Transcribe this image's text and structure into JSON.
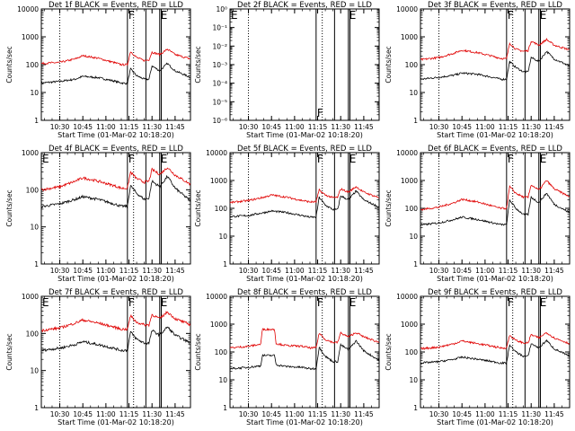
{
  "figure": {
    "xlabel": "Start Time (01-Mar-02 10:18:20)",
    "ylabel": "Counts/sec",
    "x_tick_labels": [
      "10:30",
      "10:45",
      "11:00",
      "11:15",
      "11:30",
      "11:45"
    ],
    "colors": {
      "events": "#000000",
      "lld": "#e00000",
      "axes": "#000000"
    }
  },
  "chart_data": [
    {
      "type": "line",
      "title": "Det 1f BLACK = Events, RED = LLD",
      "xlabel": "Start Time (01-Mar-02 10:18:20)",
      "ylabel": "Counts/sec",
      "xlim": [
        "10:18",
        "11:55"
      ],
      "ylim": [
        1,
        10000
      ],
      "yscale": "log",
      "y_tick_labels": [
        "1",
        "10",
        "100",
        "1000",
        "10000"
      ],
      "dotted_lines": [
        "10:30",
        "11:18"
      ],
      "solid_lines": [
        "11:14",
        "11:26",
        "11:35",
        "11:36"
      ],
      "markers": [
        {
          "text": "F",
          "x": "11:14"
        },
        {
          "text": "E",
          "x": "11:35"
        }
      ],
      "series": [
        {
          "name": "Events",
          "x": [
            "10:18",
            "10:30",
            "10:40",
            "10:45",
            "10:55",
            "11:05",
            "11:10",
            "11:14",
            "11:16",
            "11:20",
            "11:25",
            "11:28",
            "11:30",
            "11:35",
            "11:40",
            "11:45",
            "11:55"
          ],
          "values": [
            22,
            25,
            30,
            38,
            34,
            26,
            22,
            21,
            70,
            40,
            30,
            30,
            90,
            60,
            110,
            60,
            35
          ]
        },
        {
          "name": "LLD",
          "x": [
            "10:18",
            "10:30",
            "10:40",
            "10:45",
            "10:55",
            "11:05",
            "11:10",
            "11:14",
            "11:16",
            "11:20",
            "11:25",
            "11:28",
            "11:30",
            "11:35",
            "11:40",
            "11:45",
            "11:55"
          ],
          "values": [
            110,
            120,
            160,
            210,
            170,
            120,
            100,
            100,
            300,
            180,
            140,
            150,
            280,
            230,
            360,
            230,
            160
          ]
        }
      ]
    },
    {
      "type": "line",
      "title": "Det 2f BLACK = Events, RED = LLD",
      "xlabel": "Start Time (01-Mar-02 10:18:20)",
      "ylabel": "Counts/sec",
      "xlim": [
        "10:18",
        "11:55"
      ],
      "ylim": [
        1e-06,
        1
      ],
      "yscale": "log",
      "y_tick_labels": [
        "10⁻⁶",
        "10⁻⁵",
        "10⁻⁴",
        "10⁻³",
        "10⁻²",
        "10⁻¹",
        "10⁰"
      ],
      "dotted_lines": [
        "10:30",
        "11:18"
      ],
      "solid_lines": [
        "11:14",
        "11:26",
        "11:35",
        "11:36"
      ],
      "markers": [
        {
          "text": "E",
          "x": "10:18"
        },
        {
          "text": "F",
          "x": "11:14"
        },
        {
          "text": "E",
          "x": "11:35"
        }
      ],
      "series": []
    },
    {
      "type": "line",
      "title": "Det 3f BLACK = Events, RED = LLD",
      "xlabel": "Start Time (01-Mar-02 10:18:20)",
      "ylabel": "Counts/sec",
      "xlim": [
        "10:18",
        "11:55"
      ],
      "ylim": [
        1,
        10000
      ],
      "yscale": "log",
      "y_tick_labels": [
        "1",
        "10",
        "100",
        "1000",
        "10000"
      ],
      "dotted_lines": [
        "10:30",
        "11:18"
      ],
      "solid_lines": [
        "11:14",
        "11:26",
        "11:35",
        "11:36"
      ],
      "markers": [
        {
          "text": "F",
          "x": "11:14"
        },
        {
          "text": "E",
          "x": "11:35"
        }
      ],
      "series": [
        {
          "name": "Events",
          "x": [
            "10:18",
            "10:30",
            "10:40",
            "10:45",
            "10:55",
            "11:05",
            "11:10",
            "11:14",
            "11:16",
            "11:20",
            "11:25",
            "11:28",
            "11:30",
            "11:35",
            "11:40",
            "11:45",
            "11:55"
          ],
          "values": [
            30,
            35,
            42,
            50,
            45,
            35,
            30,
            30,
            130,
            80,
            55,
            55,
            180,
            130,
            300,
            160,
            90
          ]
        },
        {
          "name": "LLD",
          "x": [
            "10:18",
            "10:30",
            "10:40",
            "10:45",
            "10:55",
            "11:05",
            "11:10",
            "11:14",
            "11:16",
            "11:20",
            "11:25",
            "11:28",
            "11:30",
            "11:35",
            "11:40",
            "11:45",
            "11:55"
          ],
          "values": [
            150,
            180,
            260,
            330,
            270,
            200,
            170,
            160,
            600,
            360,
            300,
            320,
            700,
            500,
            800,
            500,
            340
          ]
        }
      ]
    },
    {
      "type": "line",
      "title": "Det 4f BLACK = Events, RED = LLD",
      "xlabel": "Start Time (01-Mar-02 10:18:20)",
      "ylabel": "Counts/sec",
      "xlim": [
        "10:18",
        "11:55"
      ],
      "ylim": [
        1,
        1000
      ],
      "yscale": "log",
      "y_tick_labels": [
        "1",
        "10",
        "100",
        "1000"
      ],
      "dotted_lines": [
        "10:30",
        "11:18"
      ],
      "solid_lines": [
        "11:14",
        "11:26",
        "11:35",
        "11:36"
      ],
      "markers": [
        {
          "text": "E",
          "x": "10:18"
        },
        {
          "text": "F",
          "x": "11:14"
        },
        {
          "text": "E",
          "x": "11:35"
        }
      ],
      "series": [
        {
          "name": "Events",
          "x": [
            "10:18",
            "10:30",
            "10:40",
            "10:45",
            "10:55",
            "11:05",
            "11:10",
            "11:14",
            "11:16",
            "11:20",
            "11:25",
            "11:28",
            "11:30",
            "11:35",
            "11:40",
            "11:45",
            "11:55"
          ],
          "values": [
            35,
            42,
            55,
            65,
            55,
            42,
            36,
            36,
            130,
            80,
            55,
            60,
            170,
            120,
            230,
            110,
            50
          ]
        },
        {
          "name": "LLD",
          "x": [
            "10:18",
            "10:30",
            "10:40",
            "10:45",
            "10:55",
            "11:05",
            "11:10",
            "11:14",
            "11:16",
            "11:20",
            "11:25",
            "11:28",
            "11:30",
            "11:35",
            "11:40",
            "11:45",
            "11:55"
          ],
          "values": [
            100,
            120,
            170,
            210,
            170,
            130,
            110,
            110,
            300,
            200,
            160,
            170,
            350,
            260,
            400,
            250,
            140
          ]
        }
      ]
    },
    {
      "type": "line",
      "title": "Det 5f BLACK = Events, RED = LLD",
      "xlabel": "Start Time (01-Mar-02 10:18:20)",
      "ylabel": "Counts/sec",
      "xlim": [
        "10:18",
        "11:55"
      ],
      "ylim": [
        1,
        10000
      ],
      "yscale": "log",
      "y_tick_labels": [
        "1",
        "10",
        "100",
        "1000",
        "10000"
      ],
      "dotted_lines": [
        "10:30",
        "11:18"
      ],
      "solid_lines": [
        "11:14",
        "11:26",
        "11:35",
        "11:36"
      ],
      "markers": [
        {
          "text": "F",
          "x": "11:14"
        },
        {
          "text": "E",
          "x": "11:35"
        }
      ],
      "series": [
        {
          "name": "Events",
          "x": [
            "10:18",
            "10:30",
            "10:40",
            "10:45",
            "10:55",
            "11:05",
            "11:10",
            "11:14",
            "11:16",
            "11:20",
            "11:25",
            "11:28",
            "11:30",
            "11:35",
            "11:40",
            "11:45",
            "11:55"
          ],
          "values": [
            50,
            55,
            70,
            80,
            70,
            55,
            48,
            48,
            250,
            130,
            90,
            90,
            280,
            200,
            420,
            200,
            110
          ]
        },
        {
          "name": "LLD",
          "x": [
            "10:18",
            "10:30",
            "10:40",
            "10:45",
            "10:55",
            "11:05",
            "11:10",
            "11:14",
            "11:16",
            "11:20",
            "11:25",
            "11:28",
            "11:30",
            "11:35",
            "11:40",
            "11:45",
            "11:55"
          ],
          "values": [
            160,
            190,
            250,
            300,
            250,
            190,
            170,
            170,
            450,
            300,
            240,
            250,
            500,
            380,
            600,
            380,
            240
          ]
        }
      ]
    },
    {
      "type": "line",
      "title": "Det 6f BLACK = Events, RED = LLD",
      "xlabel": "Start Time (01-Mar-02 10:18:20)",
      "ylabel": "Counts/sec",
      "xlim": [
        "10:18",
        "11:55"
      ],
      "ylim": [
        1,
        10000
      ],
      "yscale": "log",
      "y_tick_labels": [
        "1",
        "10",
        "100",
        "1000",
        "10000"
      ],
      "dotted_lines": [
        "10:30",
        "11:18"
      ],
      "solid_lines": [
        "11:14",
        "11:26",
        "11:35",
        "11:36"
      ],
      "markers": [
        {
          "text": "F",
          "x": "11:14"
        },
        {
          "text": "E",
          "x": "11:35"
        }
      ],
      "series": [
        {
          "name": "Events",
          "x": [
            "10:18",
            "10:30",
            "10:40",
            "10:45",
            "10:55",
            "11:05",
            "11:10",
            "11:14",
            "11:16",
            "11:20",
            "11:25",
            "11:28",
            "11:30",
            "11:35",
            "11:40",
            "11:45",
            "11:55"
          ],
          "values": [
            25,
            30,
            40,
            48,
            40,
            30,
            26,
            26,
            200,
            100,
            60,
            60,
            250,
            160,
            350,
            140,
            70
          ]
        },
        {
          "name": "LLD",
          "x": [
            "10:18",
            "10:30",
            "10:40",
            "10:45",
            "10:55",
            "11:05",
            "11:10",
            "11:14",
            "11:16",
            "11:20",
            "11:25",
            "11:28",
            "11:30",
            "11:35",
            "11:40",
            "11:45",
            "11:55"
          ],
          "values": [
            90,
            110,
            160,
            210,
            170,
            120,
            100,
            100,
            600,
            350,
            250,
            250,
            700,
            450,
            1000,
            500,
            260
          ]
        }
      ]
    },
    {
      "type": "line",
      "title": "Det 7f BLACK = Events, RED = LLD",
      "xlabel": "Start Time (01-Mar-02 10:18:20)",
      "ylabel": "Counts/sec",
      "xlim": [
        "10:18",
        "11:55"
      ],
      "ylim": [
        1,
        1000
      ],
      "yscale": "log",
      "y_tick_labels": [
        "1",
        "10",
        "100",
        "1000"
      ],
      "dotted_lines": [
        "10:30",
        "11:18"
      ],
      "solid_lines": [
        "11:14",
        "11:26",
        "11:35",
        "11:36"
      ],
      "markers": [
        {
          "text": "E",
          "x": "10:18"
        },
        {
          "text": "F",
          "x": "11:14"
        },
        {
          "text": "E",
          "x": "11:35"
        }
      ],
      "series": [
        {
          "name": "Events",
          "x": [
            "10:18",
            "10:30",
            "10:40",
            "10:45",
            "10:55",
            "11:05",
            "11:10",
            "11:14",
            "11:16",
            "11:20",
            "11:25",
            "11:28",
            "11:30",
            "11:35",
            "11:40",
            "11:45",
            "11:55"
          ],
          "values": [
            35,
            40,
            50,
            60,
            50,
            40,
            35,
            35,
            110,
            70,
            55,
            55,
            120,
            90,
            150,
            90,
            55
          ]
        },
        {
          "name": "LLD",
          "x": [
            "10:18",
            "10:30",
            "10:40",
            "10:45",
            "10:55",
            "11:05",
            "11:10",
            "11:14",
            "11:16",
            "11:20",
            "11:25",
            "11:28",
            "11:30",
            "11:35",
            "11:40",
            "11:45",
            "11:55"
          ],
          "values": [
            120,
            140,
            190,
            230,
            190,
            150,
            130,
            130,
            300,
            200,
            170,
            170,
            320,
            250,
            380,
            250,
            170
          ]
        }
      ]
    },
    {
      "type": "line",
      "title": "Det 8f BLACK = Events, RED = LLD",
      "xlabel": "Start Time (01-Mar-02 10:18:20)",
      "ylabel": "Counts/sec",
      "xlim": [
        "10:18",
        "11:55"
      ],
      "ylim": [
        1,
        10000
      ],
      "yscale": "log",
      "y_tick_labels": [
        "1",
        "10",
        "100",
        "1000",
        "10000"
      ],
      "dotted_lines": [
        "10:30",
        "11:18"
      ],
      "solid_lines": [
        "11:14",
        "11:26",
        "11:35",
        "11:36"
      ],
      "markers": [
        {
          "text": "F",
          "x": "11:14"
        },
        {
          "text": "E",
          "x": "11:35"
        }
      ],
      "series": [
        {
          "name": "Events",
          "x": [
            "10:18",
            "10:30",
            "10:38",
            "10:39",
            "10:45",
            "10:47",
            "10:48",
            "10:55",
            "11:05",
            "11:10",
            "11:14",
            "11:16",
            "11:20",
            "11:25",
            "11:28",
            "11:30",
            "11:35",
            "11:40",
            "11:45",
            "11:55"
          ],
          "values": [
            25,
            28,
            32,
            75,
            75,
            75,
            35,
            30,
            28,
            25,
            25,
            150,
            70,
            45,
            45,
            180,
            120,
            250,
            110,
            50
          ]
        },
        {
          "name": "LLD",
          "x": [
            "10:18",
            "10:30",
            "10:38",
            "10:39",
            "10:45",
            "10:47",
            "10:48",
            "10:55",
            "11:05",
            "11:10",
            "11:14",
            "11:16",
            "11:20",
            "11:25",
            "11:28",
            "11:30",
            "11:35",
            "11:40",
            "11:45",
            "11:55"
          ],
          "values": [
            140,
            160,
            190,
            650,
            650,
            650,
            200,
            170,
            160,
            140,
            140,
            480,
            280,
            220,
            220,
            480,
            350,
            500,
            350,
            220
          ]
        }
      ]
    },
    {
      "type": "line",
      "title": "Det 9f BLACK = Events, RED = LLD",
      "xlabel": "Start Time (01-Mar-02 10:18:20)",
      "ylabel": "Counts/sec",
      "xlim": [
        "10:18",
        "11:55"
      ],
      "ylim": [
        1,
        10000
      ],
      "yscale": "log",
      "y_tick_labels": [
        "1",
        "10",
        "100",
        "1000",
        "10000"
      ],
      "dotted_lines": [
        "10:30",
        "11:18"
      ],
      "solid_lines": [
        "11:14",
        "11:26",
        "11:35",
        "11:36"
      ],
      "markers": [
        {
          "text": "F",
          "x": "11:14"
        },
        {
          "text": "E",
          "x": "11:35"
        }
      ],
      "series": [
        {
          "name": "Events",
          "x": [
            "10:18",
            "10:30",
            "10:40",
            "10:45",
            "10:55",
            "11:05",
            "11:10",
            "11:14",
            "11:16",
            "11:20",
            "11:25",
            "11:28",
            "11:30",
            "11:35",
            "11:40",
            "11:45",
            "11:55"
          ],
          "values": [
            40,
            45,
            55,
            65,
            55,
            45,
            40,
            40,
            180,
            100,
            70,
            70,
            200,
            140,
            260,
            130,
            70
          ]
        },
        {
          "name": "LLD",
          "x": [
            "10:18",
            "10:30",
            "10:40",
            "10:45",
            "10:55",
            "11:05",
            "11:10",
            "11:14",
            "11:16",
            "11:20",
            "11:25",
            "11:28",
            "11:30",
            "11:35",
            "11:40",
            "11:45",
            "11:55"
          ],
          "values": [
            130,
            150,
            200,
            250,
            200,
            160,
            140,
            140,
            400,
            260,
            210,
            210,
            420,
            320,
            500,
            320,
            200
          ]
        }
      ]
    }
  ]
}
